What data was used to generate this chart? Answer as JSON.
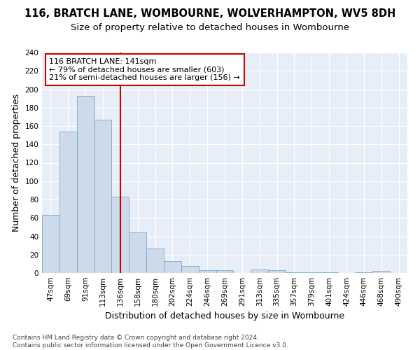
{
  "title": "116, BRATCH LANE, WOMBOURNE, WOLVERHAMPTON, WV5 8DH",
  "subtitle": "Size of property relative to detached houses in Wombourne",
  "xlabel": "Distribution of detached houses by size in Wombourne",
  "ylabel": "Number of detached properties",
  "bar_color": "#ccdaeb",
  "bar_edge_color": "#7aaac8",
  "background_color": "#e8eef8",
  "grid_color": "#ffffff",
  "categories": [
    "47sqm",
    "69sqm",
    "91sqm",
    "113sqm",
    "136sqm",
    "158sqm",
    "180sqm",
    "202sqm",
    "224sqm",
    "246sqm",
    "269sqm",
    "291sqm",
    "313sqm",
    "335sqm",
    "357sqm",
    "379sqm",
    "401sqm",
    "424sqm",
    "446sqm",
    "468sqm",
    "490sqm"
  ],
  "values": [
    63,
    154,
    193,
    167,
    83,
    44,
    27,
    13,
    8,
    3,
    3,
    0,
    4,
    3,
    1,
    1,
    1,
    0,
    1,
    2,
    0
  ],
  "property_line_x": 4.0,
  "property_label": "116 BRATCH LANE: 141sqm",
  "annotation_line1": "← 79% of detached houses are smaller (603)",
  "annotation_line2": "21% of semi-detached houses are larger (156) →",
  "annotation_box_color": "#ffffff",
  "annotation_box_edge": "#cc0000",
  "vline_color": "#cc0000",
  "ylim": [
    0,
    240
  ],
  "yticks": [
    0,
    20,
    40,
    60,
    80,
    100,
    120,
    140,
    160,
    180,
    200,
    220,
    240
  ],
  "footer_text": "Contains HM Land Registry data © Crown copyright and database right 2024.\nContains public sector information licensed under the Open Government Licence v3.0.",
  "title_fontsize": 10.5,
  "subtitle_fontsize": 9.5,
  "axis_label_fontsize": 9,
  "tick_fontsize": 7.5,
  "annotation_fontsize": 8,
  "footer_fontsize": 6.5
}
